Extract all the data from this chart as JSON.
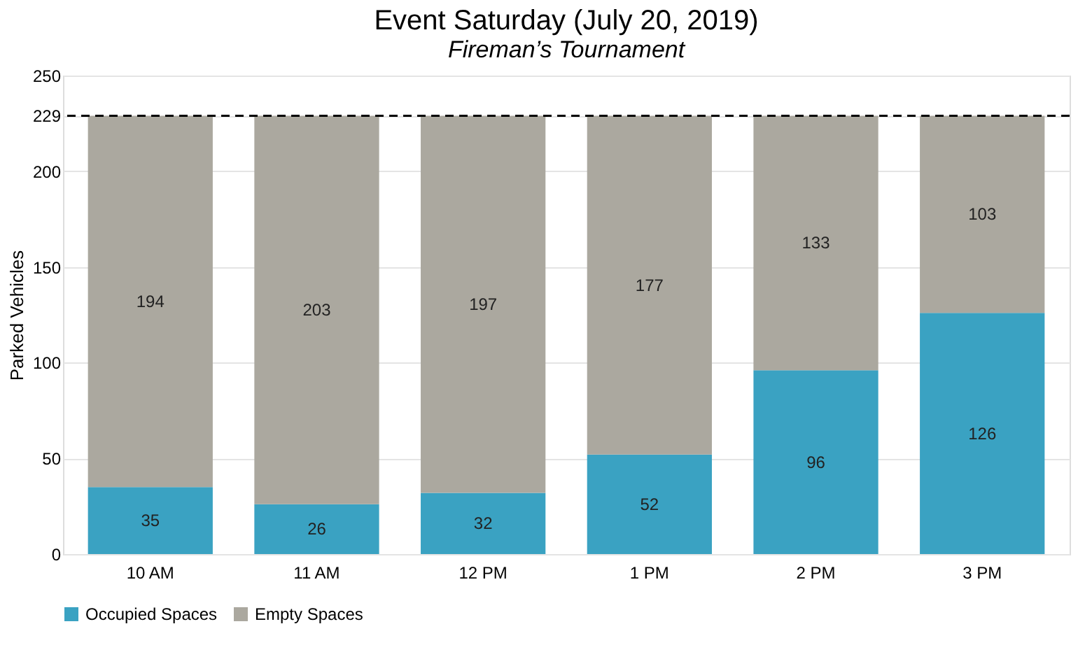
{
  "chart_data": {
    "type": "bar",
    "title": "Event Saturday (July 20, 2019)",
    "subtitle": "Fireman’s Tournament",
    "ylabel": "Parked Vehicles",
    "categories": [
      "10 AM",
      "11 AM",
      "12 PM",
      "1 PM",
      "2 PM",
      "3 PM"
    ],
    "stacked": true,
    "series": [
      {
        "name": "Occupied Spaces",
        "color": "#3aa2c2",
        "values": [
          35,
          26,
          32,
          52,
          96,
          126
        ]
      },
      {
        "name": "Empty Spaces",
        "color": "#aba89f",
        "values": [
          194,
          203,
          197,
          177,
          133,
          103
        ]
      }
    ],
    "ylim": [
      0,
      250
    ],
    "yticks": [
      0,
      50,
      100,
      150,
      200,
      229,
      250
    ],
    "ref_lines": [
      {
        "axis": "y",
        "value": 229,
        "line_style": "dashed",
        "color": "#000000"
      }
    ],
    "grid": "y",
    "legend": "bottom",
    "data_labels": true
  }
}
